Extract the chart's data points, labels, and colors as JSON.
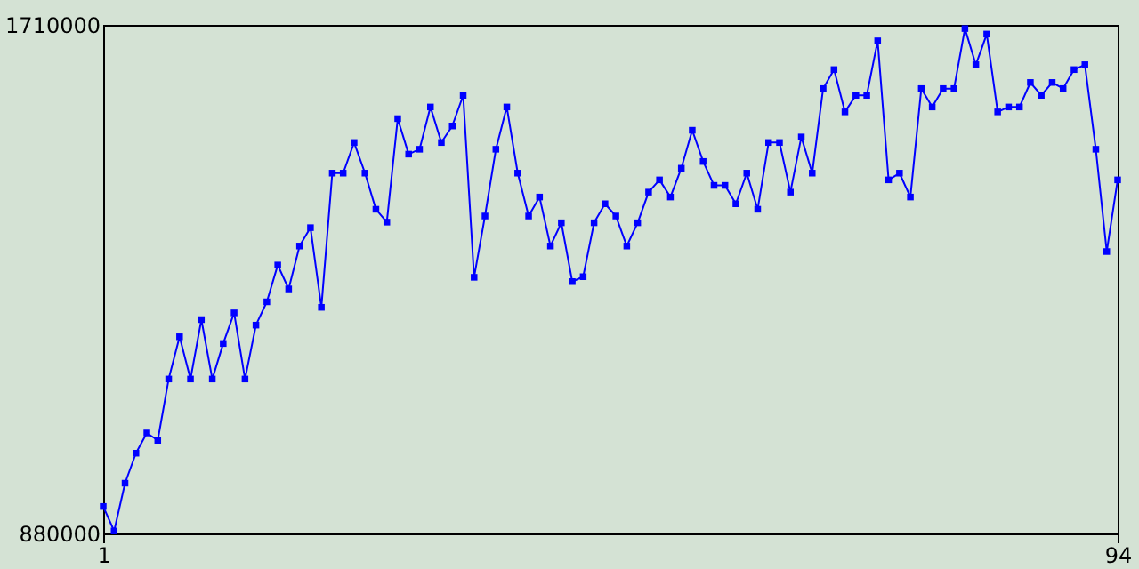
{
  "chart_data": {
    "type": "line",
    "x": [
      1,
      2,
      3,
      4,
      5,
      6,
      7,
      8,
      9,
      10,
      11,
      12,
      13,
      14,
      15,
      16,
      17,
      18,
      19,
      20,
      21,
      22,
      23,
      24,
      25,
      26,
      27,
      28,
      29,
      30,
      31,
      32,
      33,
      34,
      35,
      36,
      37,
      38,
      39,
      40,
      41,
      42,
      43,
      44,
      45,
      46,
      47,
      48,
      49,
      50,
      51,
      52,
      53,
      54,
      55,
      56,
      57,
      58,
      59,
      60,
      61,
      62,
      63,
      64,
      65,
      66,
      67,
      68,
      69,
      70,
      71,
      72,
      73,
      74,
      75,
      76,
      77,
      78,
      79,
      80,
      81,
      82,
      83,
      84,
      85,
      86,
      87,
      88,
      89,
      90,
      91,
      92,
      93,
      94
    ],
    "series": [
      {
        "color": "#0000ff",
        "values": [
          924000,
          884000,
          962000,
          1011000,
          1044000,
          1032000,
          1132000,
          1201000,
          1132000,
          1229000,
          1132000,
          1190000,
          1240000,
          1132000,
          1220000,
          1258000,
          1318000,
          1279000,
          1349000,
          1379000,
          1249000,
          1468000,
          1468000,
          1518000,
          1468000,
          1409000,
          1388000,
          1557000,
          1499000,
          1507000,
          1576000,
          1518000,
          1545000,
          1595000,
          1298000,
          1398000,
          1507000,
          1576000,
          1468000,
          1398000,
          1429000,
          1349000,
          1387000,
          1291000,
          1299000,
          1387000,
          1418000,
          1398000,
          1349000,
          1387000,
          1437000,
          1457000,
          1429000,
          1476000,
          1538000,
          1487000,
          1448000,
          1448000,
          1418000,
          1468000,
          1409000,
          1518000,
          1518000,
          1437000,
          1527000,
          1468000,
          1606000,
          1637000,
          1568000,
          1595000,
          1595000,
          1684000,
          1457000,
          1468000,
          1429000,
          1606000,
          1576000,
          1606000,
          1606000,
          1704000,
          1645000,
          1695000,
          1568000,
          1576000,
          1576000,
          1616000,
          1595000,
          1616000,
          1606000,
          1637000,
          1645000,
          1507000,
          1340000,
          1457000
        ]
      }
    ],
    "xlim": [
      1,
      94
    ],
    "xticks": [
      1,
      94
    ],
    "ylim": [
      880000,
      1710000
    ],
    "yticks": [
      880000,
      1710000
    ],
    "marker": "square",
    "line_style": "solid",
    "grid": false
  }
}
